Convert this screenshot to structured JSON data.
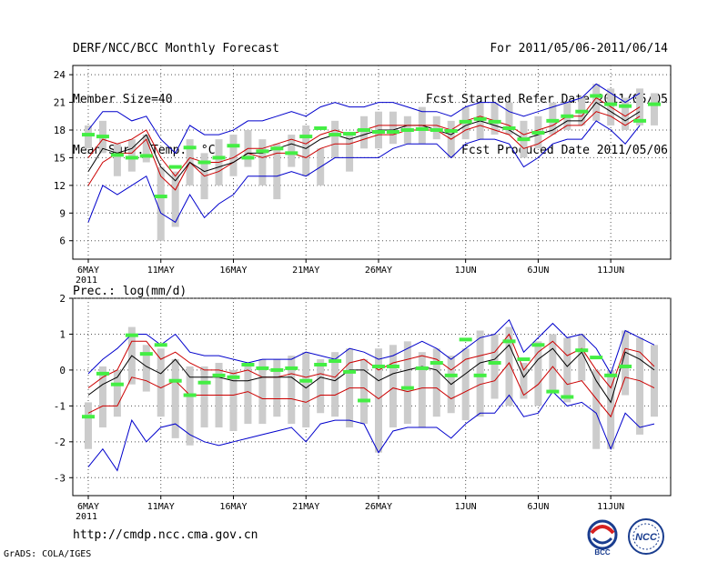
{
  "header": {
    "line1_left": "DERF/NCC/BCC Monthly Forecast",
    "line2_left": "Member Size=40",
    "line3_left": "Mean Surf. Temp.: °C",
    "line1_right": "For 2011/05/06-2011/06/14",
    "line2_right": "Fcst Started Refer Date 2011/05/05",
    "line3_right": "Fcst Produced Date 2011/05/06"
  },
  "footer": {
    "url": "http://cmdp.ncc.cma.gov.cn",
    "grads": "GrADS: COLA/IGES",
    "logo_bcc": "BCC",
    "logo_ncc": "NCC"
  },
  "colors": {
    "envelope": "#0000cc",
    "spread": "#cc0000",
    "mean": "#000000",
    "member": "#44ee44",
    "bar": "#cccccc",
    "grid": "#555555"
  },
  "chart_data": [
    {
      "type": "line",
      "title": "Mean Surf. Temp.: °C",
      "days": 40,
      "x_ticks": [
        "6MAY",
        "11MAY",
        "16MAY",
        "21MAY",
        "26MAY",
        "1JUN",
        "6JUN",
        "11JUN"
      ],
      "x_tick_days": [
        0,
        5,
        10,
        15,
        20,
        26,
        31,
        36
      ],
      "x_year": "2011",
      "y_ticks": [
        6,
        9,
        12,
        15,
        18,
        21,
        24
      ],
      "ylim": [
        4,
        25
      ],
      "series": [
        {
          "name": "max",
          "values": [
            8.0,
            12.0,
            11.0,
            12.0,
            13.0,
            9.0,
            8.0,
            11.0,
            8.5,
            10.0,
            11.0,
            13.0,
            13.0,
            13.0,
            13.5,
            13.0,
            14.0,
            15.0,
            15.0,
            15.0,
            15.0,
            16.0,
            16.5,
            16.5,
            16.5,
            15.0,
            16.5,
            17.0,
            17.0,
            16.5,
            14.0,
            15.0,
            16.5,
            17.0,
            17.0,
            19.0,
            18.0,
            16.5,
            18.5,
            null
          ]
        },
        {
          "name": "upper",
          "values": [
            12.0,
            14.5,
            15.5,
            15.5,
            17.0,
            13.0,
            11.5,
            14.5,
            13.0,
            13.5,
            14.5,
            15.5,
            15.0,
            15.5,
            15.5,
            15.0,
            16.0,
            16.5,
            16.5,
            17.0,
            17.5,
            17.5,
            18.0,
            18.0,
            18.0,
            17.0,
            18.0,
            18.5,
            18.0,
            17.5,
            16.0,
            16.5,
            17.5,
            18.5,
            18.5,
            20.0,
            19.5,
            18.5,
            19.5,
            null
          ]
        },
        {
          "name": "mean",
          "values": [
            13.5,
            16.0,
            15.5,
            16.0,
            17.5,
            14.0,
            12.5,
            14.5,
            13.5,
            14.0,
            14.5,
            15.5,
            15.5,
            16.0,
            16.5,
            16.0,
            17.0,
            17.5,
            17.0,
            17.5,
            18.0,
            18.0,
            18.5,
            18.5,
            18.0,
            17.5,
            18.5,
            19.0,
            18.5,
            18.0,
            17.0,
            17.5,
            18.0,
            19.0,
            19.0,
            21.0,
            20.0,
            19.0,
            20.0,
            null
          ]
        },
        {
          "name": "lower",
          "values": [
            15.0,
            17.0,
            16.5,
            17.0,
            18.0,
            15.0,
            13.0,
            15.0,
            14.5,
            14.5,
            15.0,
            16.0,
            16.0,
            16.5,
            17.0,
            16.5,
            17.5,
            18.0,
            17.5,
            18.0,
            18.5,
            18.5,
            18.5,
            18.5,
            18.5,
            18.0,
            19.0,
            19.5,
            19.0,
            18.5,
            17.5,
            18.0,
            18.5,
            19.5,
            19.5,
            21.5,
            20.5,
            19.5,
            20.5,
            null
          ]
        },
        {
          "name": "min",
          "values": [
            18.0,
            20.0,
            20.0,
            19.0,
            19.5,
            17.0,
            15.5,
            18.5,
            17.5,
            17.5,
            18.0,
            19.0,
            19.0,
            19.5,
            20.0,
            19.5,
            20.5,
            21.0,
            20.5,
            20.5,
            21.0,
            21.0,
            20.5,
            20.0,
            20.0,
            19.5,
            20.5,
            21.0,
            21.0,
            20.0,
            19.5,
            20.0,
            20.5,
            21.0,
            21.5,
            23.0,
            22.0,
            21.0,
            22.0,
            null
          ]
        }
      ],
      "bars": [
        [
          16.0,
          18.5
        ],
        [
          15.5,
          19.0
        ],
        [
          13.0,
          16.5
        ],
        [
          13.5,
          17.0
        ],
        [
          14.5,
          17.5
        ],
        [
          6.0,
          14.0
        ],
        [
          7.5,
          13.5
        ],
        [
          12.0,
          17.0
        ],
        [
          10.5,
          15.5
        ],
        [
          12.0,
          17.0
        ],
        [
          13.0,
          17.5
        ],
        [
          14.0,
          18.0
        ],
        [
          12.0,
          17.0
        ],
        [
          10.5,
          16.5
        ],
        [
          14.0,
          17.5
        ],
        [
          13.0,
          18.5
        ],
        [
          12.0,
          16.0
        ],
        [
          15.0,
          19.0
        ],
        [
          13.5,
          17.5
        ],
        [
          16.0,
          19.5
        ],
        [
          16.0,
          20.0
        ],
        [
          16.5,
          20.0
        ],
        [
          16.5,
          19.5
        ],
        [
          16.5,
          20.5
        ],
        [
          17.0,
          19.5
        ],
        [
          15.0,
          19.0
        ],
        [
          17.0,
          20.5
        ],
        [
          17.0,
          21.0
        ],
        [
          17.5,
          21.0
        ],
        [
          17.5,
          21.0
        ],
        [
          15.0,
          19.0
        ],
        [
          16.0,
          19.5
        ],
        [
          17.5,
          21.0
        ],
        [
          18.0,
          21.0
        ],
        [
          18.5,
          21.5
        ],
        [
          19.0,
          23.0
        ],
        [
          18.5,
          22.5
        ],
        [
          18.0,
          21.5
        ],
        [
          18.5,
          22.5
        ],
        [
          18.5,
          22.0
        ]
      ],
      "obs": [
        17.5,
        17.3,
        15.3,
        15.0,
        15.2,
        10.8,
        14.0,
        16.1,
        14.5,
        15.0,
        16.3,
        15.0,
        15.7,
        16.0,
        15.5,
        17.3,
        18.2,
        17.5,
        17.6,
        18.0,
        17.8,
        17.8,
        18.0,
        18.1,
        18.0,
        17.9,
        18.9,
        19.2,
        18.9,
        18.2,
        17.0,
        17.7,
        19.0,
        19.5,
        20.0,
        21.7,
        20.8,
        20.6,
        19.0,
        20.8
      ]
    },
    {
      "type": "line",
      "title": "Prec.: log(mm/d)",
      "days": 40,
      "x_ticks": [
        "6MAY",
        "11MAY",
        "16MAY",
        "21MAY",
        "26MAY",
        "1JUN",
        "6JUN",
        "11JUN"
      ],
      "x_tick_days": [
        0,
        5,
        10,
        15,
        20,
        26,
        31,
        36
      ],
      "x_year": "2011",
      "y_ticks": [
        -3,
        -2,
        -1,
        0,
        1,
        2
      ],
      "ylim": [
        -3.5,
        2
      ],
      "series": [
        {
          "name": "max",
          "values": [
            -0.1,
            0.3,
            0.6,
            1.0,
            1.0,
            0.7,
            1.0,
            0.5,
            0.4,
            0.4,
            0.3,
            0.2,
            0.3,
            0.3,
            0.3,
            0.5,
            0.4,
            0.3,
            0.6,
            0.5,
            0.3,
            0.4,
            0.6,
            0.8,
            0.6,
            0.3,
            0.6,
            0.9,
            1.0,
            1.4,
            0.5,
            0.9,
            1.3,
            0.9,
            1.0,
            0.6,
            -0.1,
            1.1,
            0.9,
            0.7
          ]
        },
        {
          "name": "upper",
          "values": [
            -0.5,
            -0.2,
            0.0,
            0.8,
            0.8,
            0.3,
            0.5,
            0.2,
            0.0,
            0.0,
            -0.1,
            0.0,
            -0.2,
            -0.2,
            -0.1,
            -0.2,
            -0.1,
            -0.2,
            0.2,
            0.3,
            0.0,
            0.2,
            0.3,
            0.4,
            0.3,
            0.0,
            0.3,
            0.4,
            0.5,
            1.0,
            0.0,
            0.5,
            0.8,
            0.4,
            0.6,
            0.0,
            -0.5,
            0.6,
            0.5,
            0.1
          ]
        },
        {
          "name": "mean",
          "values": [
            -0.7,
            -0.4,
            -0.2,
            0.4,
            0.1,
            -0.1,
            0.3,
            -0.2,
            -0.2,
            -0.2,
            -0.3,
            -0.3,
            -0.2,
            -0.2,
            -0.2,
            -0.5,
            -0.2,
            -0.3,
            0.0,
            0.0,
            -0.3,
            -0.1,
            0.0,
            0.1,
            0.0,
            -0.4,
            -0.1,
            0.2,
            0.3,
            0.7,
            -0.2,
            0.3,
            0.6,
            0.1,
            0.5,
            -0.3,
            -0.9,
            0.5,
            0.3,
            0.0
          ]
        },
        {
          "name": "lower",
          "values": [
            -1.2,
            -1.0,
            -1.0,
            -0.2,
            -0.3,
            -0.5,
            -0.3,
            -0.7,
            -0.7,
            -0.7,
            -0.7,
            -0.6,
            -0.8,
            -0.8,
            -0.8,
            -0.9,
            -0.7,
            -0.7,
            -0.5,
            -0.5,
            -0.8,
            -0.5,
            -0.6,
            -0.5,
            -0.5,
            -0.8,
            -0.6,
            -0.4,
            -0.3,
            0.2,
            -0.7,
            -0.4,
            0.1,
            -0.4,
            -0.3,
            -0.8,
            -1.3,
            -0.2,
            -0.3,
            -0.5
          ]
        },
        {
          "name": "min",
          "values": [
            -2.7,
            -2.2,
            -2.8,
            -1.4,
            -2.0,
            -1.6,
            -1.5,
            -1.8,
            -2.0,
            -2.1,
            -2.0,
            -1.9,
            -1.8,
            -1.7,
            -1.6,
            -2.0,
            -1.5,
            -1.4,
            -1.4,
            -1.5,
            -2.3,
            -1.7,
            -1.6,
            -1.6,
            -1.6,
            -1.9,
            -1.5,
            -1.2,
            -1.2,
            -0.7,
            -1.3,
            -1.2,
            -0.6,
            -1.0,
            -0.9,
            -1.2,
            -2.2,
            -1.2,
            -1.6,
            -1.5
          ]
        }
      ],
      "bars": [
        [
          -2.2,
          -0.9
        ],
        [
          -1.6,
          0.1
        ],
        [
          -1.3,
          0.0
        ],
        [
          -0.4,
          1.2
        ],
        [
          -0.6,
          0.7
        ],
        [
          -1.3,
          0.6
        ],
        [
          -1.9,
          0.3
        ],
        [
          -2.1,
          0.1
        ],
        [
          -1.6,
          0.1
        ],
        [
          -1.6,
          0.2
        ],
        [
          -1.7,
          0.0
        ],
        [
          -1.5,
          0.1
        ],
        [
          -1.5,
          0.3
        ],
        [
          -1.3,
          0.3
        ],
        [
          -1.5,
          0.4
        ],
        [
          -1.6,
          0.5
        ],
        [
          -1.2,
          0.3
        ],
        [
          -1.3,
          0.5
        ],
        [
          -1.6,
          0.6
        ],
        [
          -1.5,
          0.3
        ],
        [
          -2.3,
          0.6
        ],
        [
          -1.6,
          0.7
        ],
        [
          -1.5,
          0.8
        ],
        [
          -1.6,
          0.5
        ],
        [
          -1.3,
          0.6
        ],
        [
          -1.2,
          0.4
        ],
        [
          -1.4,
          0.6
        ],
        [
          -1.3,
          1.1
        ],
        [
          -0.8,
          1.0
        ],
        [
          -1.0,
          1.2
        ],
        [
          -0.8,
          0.2
        ],
        [
          -1.0,
          0.8
        ],
        [
          -0.6,
          1.0
        ],
        [
          -0.9,
          0.9
        ],
        [
          -0.3,
          1.0
        ],
        [
          -2.2,
          0.0
        ],
        [
          -2.2,
          0.0
        ],
        [
          -0.7,
          1.1
        ],
        [
          -1.8,
          0.9
        ],
        [
          -1.3,
          0.7
        ]
      ],
      "obs": [
        -1.3,
        -0.1,
        -0.4,
        0.97,
        0.45,
        0.7,
        -0.3,
        -0.7,
        -0.35,
        -0.15,
        -0.2,
        0.15,
        0.05,
        0.0,
        0.05,
        -0.3,
        0.15,
        0.25,
        -0.05,
        -0.85,
        0.1,
        0.1,
        -0.5,
        0.05,
        0.2,
        -0.15,
        0.85,
        -0.15,
        0.2,
        0.8,
        0.3,
        0.7,
        -0.6,
        -0.75,
        0.55,
        0.35,
        -0.15,
        0.1,
        null,
        null
      ]
    }
  ]
}
